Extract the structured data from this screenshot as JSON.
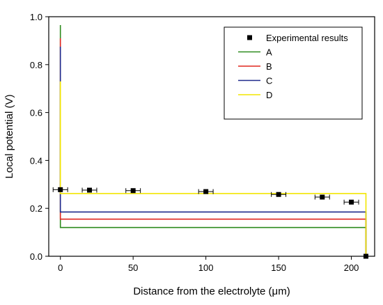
{
  "chart_data": {
    "type": "line",
    "xlabel": "Distance from the electrolyte (μm)",
    "ylabel": "Local potential (V)",
    "xlim": [
      -8,
      216
    ],
    "ylim": [
      0,
      1.0
    ],
    "xticks": [
      0,
      50,
      100,
      150,
      200
    ],
    "yticks": [
      0.0,
      0.2,
      0.4,
      0.6,
      0.8,
      1.0
    ],
    "xtick_labels": [
      "0",
      "50",
      "100",
      "150",
      "200"
    ],
    "ytick_labels": [
      "0.0",
      "0.2",
      "0.4",
      "0.6",
      "0.8",
      "1.0"
    ],
    "grid": false,
    "legend_position": "top-right",
    "experimental": {
      "name": "Experimental results",
      "color": "#000000",
      "marker": "square",
      "x": [
        0,
        20,
        50,
        100,
        150,
        180,
        200,
        210
      ],
      "y": [
        0.278,
        0.276,
        0.274,
        0.27,
        0.258,
        0.247,
        0.226,
        0.0
      ],
      "xerr": [
        5,
        5,
        5,
        5,
        5,
        5,
        5,
        0
      ]
    },
    "series": [
      {
        "name": "A",
        "color": "#2e8b1e",
        "x": [
          0,
          0,
          0,
          210,
          210
        ],
        "y": [
          0.965,
          0.12,
          0.12,
          0.12,
          0.0
        ]
      },
      {
        "name": "B",
        "color": "#e0261f",
        "x": [
          0,
          0,
          0,
          210,
          210
        ],
        "y": [
          0.91,
          0.155,
          0.155,
          0.155,
          0.0
        ]
      },
      {
        "name": "C",
        "color": "#1f2a8c",
        "x": [
          0,
          0,
          0,
          210,
          210
        ],
        "y": [
          0.875,
          0.185,
          0.185,
          0.185,
          0.0
        ]
      },
      {
        "name": "D",
        "color": "#f2e600",
        "x": [
          0,
          0,
          0,
          210,
          210
        ],
        "y": [
          0.73,
          0.262,
          0.262,
          0.262,
          0.0
        ]
      }
    ]
  }
}
